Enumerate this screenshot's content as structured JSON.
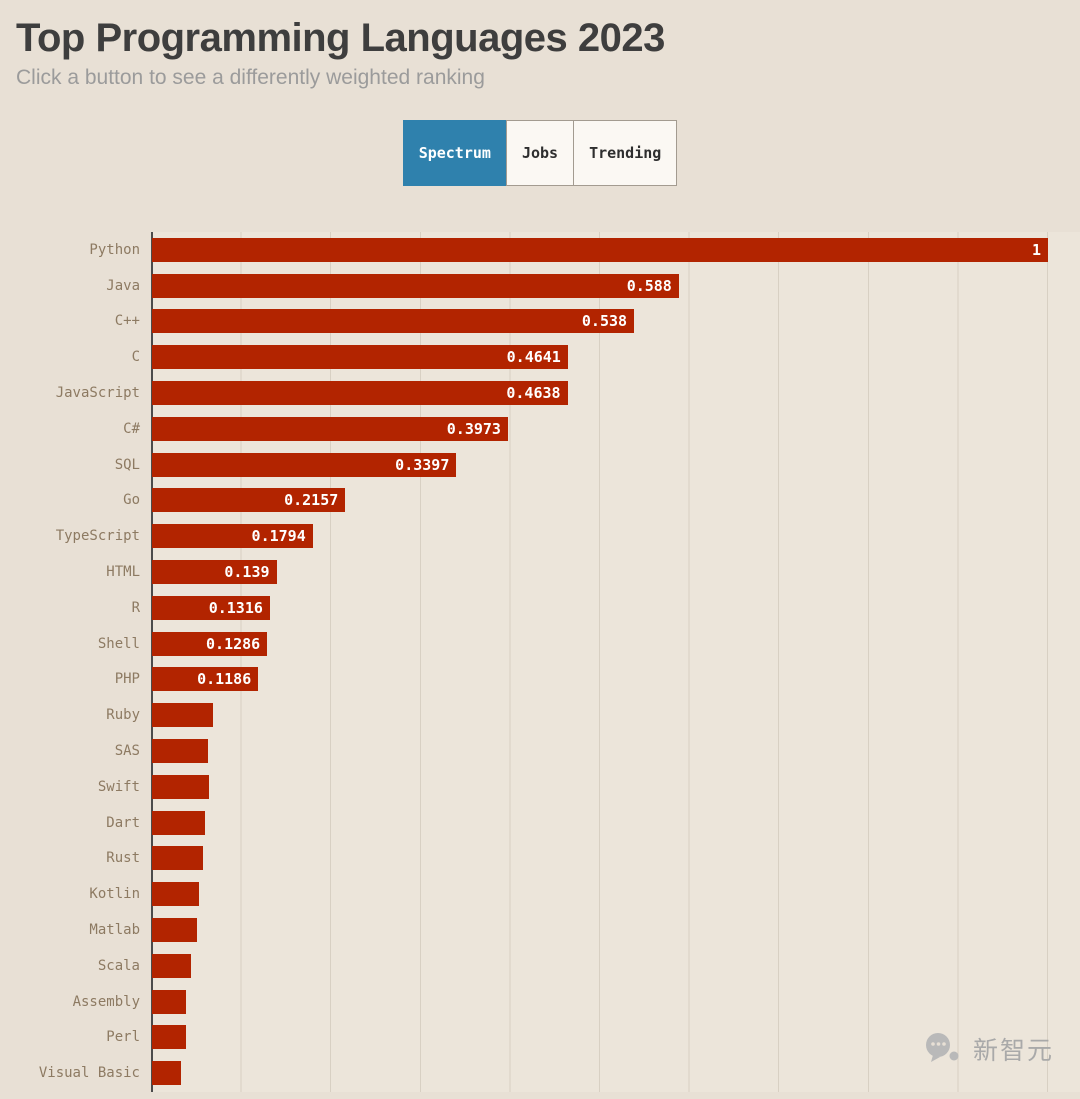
{
  "page": {
    "title": "Top Programming Languages 2023",
    "subtitle": "Click a button to see a differently weighted ranking"
  },
  "buttons": [
    {
      "label": "Spectrum",
      "active": true
    },
    {
      "label": "Jobs",
      "active": false
    },
    {
      "label": "Trending",
      "active": false
    }
  ],
  "watermark": {
    "text": "新智元"
  },
  "chart_data": {
    "type": "bar",
    "orientation": "horizontal",
    "title": "Top Programming Languages 2023",
    "xlabel": "",
    "ylabel": "",
    "xlim": [
      0,
      1
    ],
    "grid": true,
    "gridline_interval": 0.1,
    "bar_color": "#b22400",
    "plot_background": "#ece5da",
    "page_background": "#e8e0d5",
    "active_button_color": "#2f81ad",
    "categories": [
      "Python",
      "Java",
      "C++",
      "C",
      "JavaScript",
      "C#",
      "SQL",
      "Go",
      "TypeScript",
      "HTML",
      "R",
      "Shell",
      "PHP",
      "Ruby",
      "SAS",
      "Swift",
      "Dart",
      "Rust",
      "Kotlin",
      "Matlab",
      "Scala",
      "Assembly",
      "Perl",
      "Visual Basic"
    ],
    "values": [
      1,
      0.588,
      0.538,
      0.4641,
      0.4638,
      0.3973,
      0.3397,
      0.2157,
      0.1794,
      0.139,
      0.1316,
      0.1286,
      0.1186,
      0.068,
      0.063,
      0.064,
      0.059,
      0.057,
      0.053,
      0.05,
      0.044,
      0.038,
      0.038,
      0.032
    ],
    "value_labels": [
      "1",
      "0.588",
      "0.538",
      "0.4641",
      "0.4638",
      "0.3973",
      "0.3397",
      "0.2157",
      "0.1794",
      "0.139",
      "0.1316",
      "0.1286",
      "0.1186",
      "",
      "",
      "",
      "",
      "",
      "",
      "",
      "",
      "",
      "",
      ""
    ]
  }
}
